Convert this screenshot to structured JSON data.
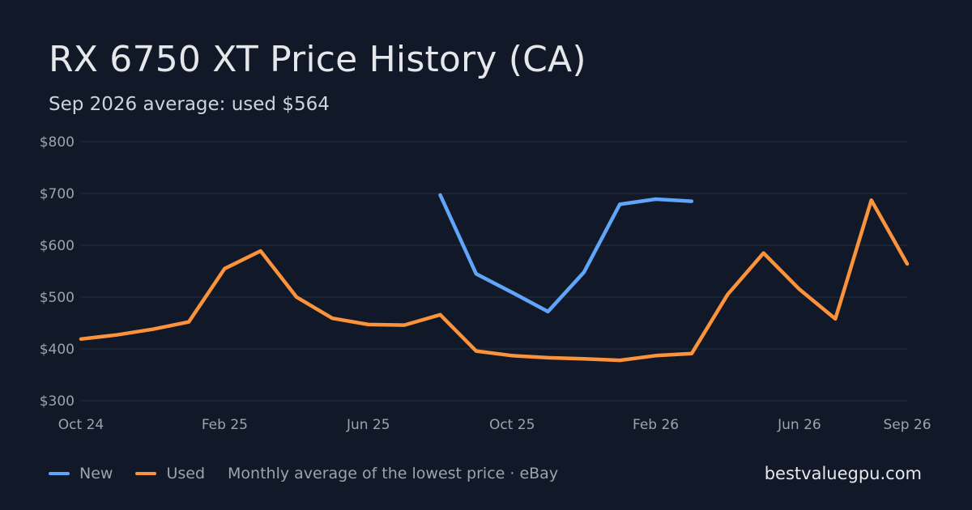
{
  "chart_data": {
    "type": "line",
    "title": "RX 6750 XT Price History (CA)",
    "subtitle": "Sep 2026 average: used $564",
    "x": [
      "2024-10",
      "2024-11",
      "2024-12",
      "2025-01",
      "2025-02",
      "2025-03",
      "2025-04",
      "2025-05",
      "2025-06",
      "2025-07",
      "2025-08",
      "2025-09",
      "2025-10",
      "2025-11",
      "2025-12",
      "2026-01",
      "2026-02",
      "2026-03",
      "2026-04",
      "2026-05",
      "2026-06",
      "2026-07",
      "2026-08",
      "2026-09"
    ],
    "x_tick_labels": [
      {
        "x": "2024-10",
        "label": "Oct 24"
      },
      {
        "x": "2025-02",
        "label": "Feb 25"
      },
      {
        "x": "2025-06",
        "label": "Jun 25"
      },
      {
        "x": "2025-10",
        "label": "Oct 25"
      },
      {
        "x": "2026-02",
        "label": "Feb 26"
      },
      {
        "x": "2026-06",
        "label": "Jun 26"
      },
      {
        "x": "2026-09",
        "label": "Sep 26"
      }
    ],
    "y_tick_labels": [
      {
        "value": 300,
        "label": "$300"
      },
      {
        "value": 400,
        "label": "$400"
      },
      {
        "value": 500,
        "label": "$500"
      },
      {
        "value": 600,
        "label": "$600"
      },
      {
        "value": 700,
        "label": "$700"
      },
      {
        "value": 800,
        "label": "$800"
      }
    ],
    "ylim": [
      300,
      800
    ],
    "grid": true,
    "legend_position": "bottom-left",
    "series": [
      {
        "name": "New",
        "color": "#60a5fa",
        "values": [
          null,
          null,
          null,
          null,
          null,
          null,
          null,
          null,
          null,
          null,
          697,
          545,
          509,
          472,
          548,
          679,
          689,
          685,
          null,
          null,
          null,
          null,
          null,
          null
        ]
      },
      {
        "name": "Used",
        "color": "#fb923c",
        "values": [
          419,
          427,
          438,
          452,
          555,
          589,
          500,
          459,
          447,
          446,
          466,
          396,
          387,
          383,
          381,
          378,
          387,
          391,
          505,
          585,
          515,
          458,
          687,
          564
        ]
      }
    ]
  },
  "legend_note": "Monthly average of the lowest price · eBay",
  "brand": "bestvaluegpu.com"
}
